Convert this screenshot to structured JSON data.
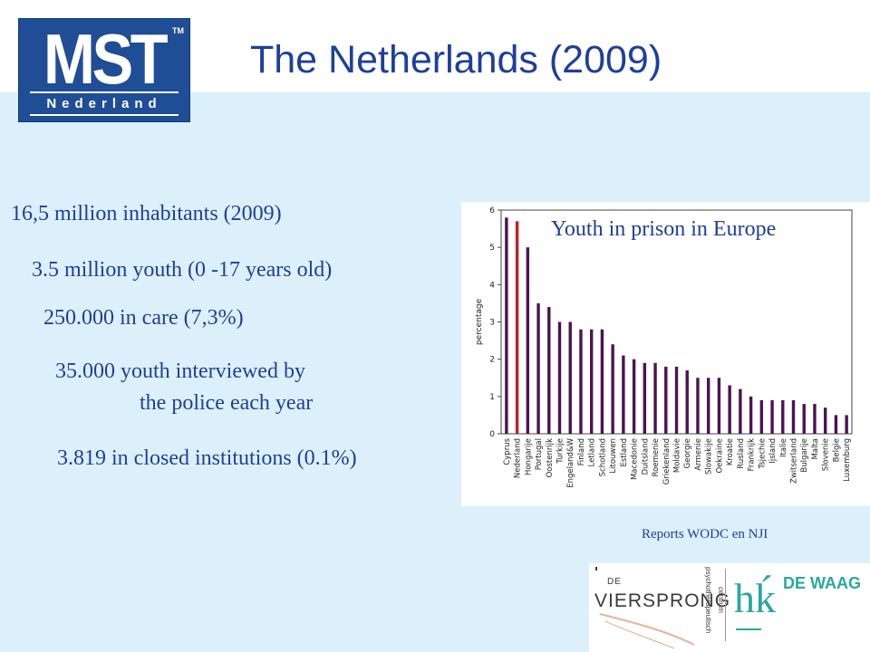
{
  "logo": {
    "brand": "MST",
    "trademark": "TM",
    "subtitle": "Nederland"
  },
  "slide_title": "The Netherlands (2009)",
  "stats": [
    "16,5 million inhabitants (2009)",
    "3.5 million youth (0 -17 years old)",
    "250.000 in care (7,3%)",
    "35.000 youth interviewed by",
    "the police each year",
    "3.819 in closed institutions (0.1%)"
  ],
  "source": "Reports WODC en NJI",
  "partner_logos": {
    "vierspong_prefix": "DE",
    "vierspong_name": "VIERSPRONG",
    "vierspong_vertical": "psychotherapeutisch",
    "vierspong_vertical2": "centrum",
    "hk": "hḱ",
    "waag": "DE WAAG"
  },
  "colors": {
    "bar": "#4b1452",
    "highlight": "#c0202a",
    "text": "#1f3f99",
    "logo_bg": "#1f4d96",
    "band": "#dcf0fb",
    "teal": "#2aa7a0"
  },
  "chart_data": {
    "type": "bar",
    "title": "Youth in prison in Europe",
    "ylabel": "percentage",
    "ylim": [
      0,
      6
    ],
    "yticks": [
      0,
      1,
      2,
      3,
      4,
      5,
      6
    ],
    "highlight_index": 1,
    "categories": [
      "Cyprus",
      "Nederland",
      "Hongarije",
      "Portugal",
      "Oostenrijk",
      "Turkije",
      "Engeland&W",
      "Finland",
      "Letland",
      "Schotland",
      "Litouwen",
      "Estland",
      "Macedonie",
      "Duitsland",
      "Roemenie",
      "Griekenland",
      "Moldavie",
      "Georgie",
      "Armenie",
      "Slowakije",
      "Oekraine",
      "Kroatie",
      "Rusland",
      "Frankrijk",
      "Tsjechie",
      "Ijsland",
      "Italie",
      "Zwitserland",
      "Bulgarije",
      "Malta",
      "Slovenie",
      "Belgie",
      "Luxemburg"
    ],
    "values": [
      5.8,
      5.7,
      5.0,
      3.5,
      3.4,
      3.0,
      3.0,
      2.8,
      2.8,
      2.8,
      2.4,
      2.1,
      2.0,
      1.9,
      1.9,
      1.8,
      1.8,
      1.7,
      1.5,
      1.5,
      1.5,
      1.3,
      1.2,
      1.0,
      0.9,
      0.9,
      0.9,
      0.9,
      0.8,
      0.8,
      0.7,
      0.5,
      0.5
    ]
  }
}
